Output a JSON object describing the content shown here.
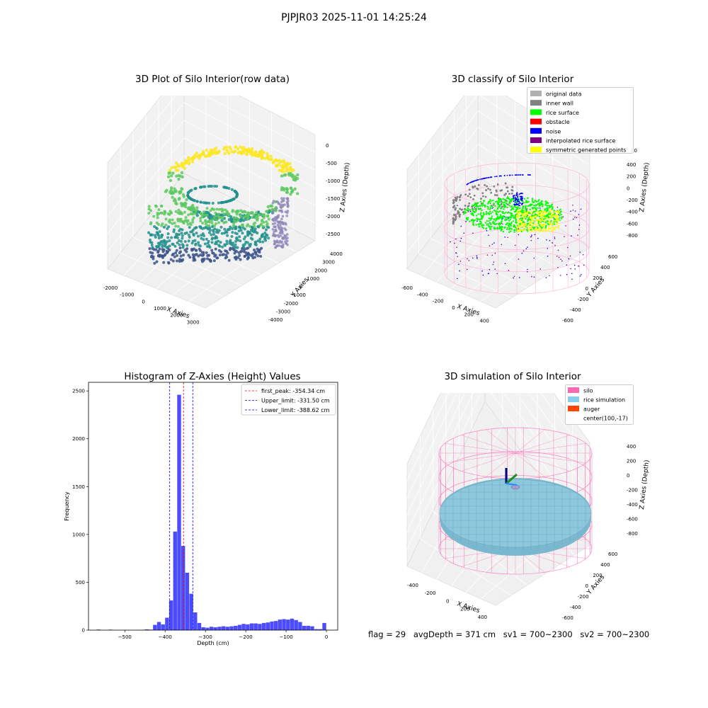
{
  "figure": {
    "title": "PJPJR03 2025-11-01 14:25:24"
  },
  "panel_raw": {
    "title": "3D Plot of Silo Interior(row data)",
    "xlabel": "X Axies",
    "ylabel": "Y Axies",
    "zlabel": "Z Axies (Depth)",
    "x_ticks": [
      "-2000",
      "-1000",
      "0",
      "1000",
      "2000",
      "3000",
      "4000"
    ],
    "y_ticks": [
      "-4000",
      "-3000",
      "-2000",
      "-1000",
      "0",
      "1000",
      "2000",
      "3000",
      "4000"
    ],
    "z_ticks": [
      "0",
      "-500",
      "-1000",
      "-1500",
      "-2000",
      "-2500"
    ],
    "colormap": [
      "#440154",
      "#3b528b",
      "#21918c",
      "#5ec962",
      "#fde725"
    ]
  },
  "panel_classify": {
    "title": "3D classify of Silo Interior",
    "xlabel": "X Axies",
    "ylabel": "Y Axies",
    "zlabel": "Z Axies (Depth)",
    "x_ticks": [
      "-600",
      "-400",
      "-200",
      "0",
      "200",
      "400",
      "600"
    ],
    "y_ticks": [
      "-600",
      "-400",
      "-200",
      "0",
      "200",
      "400",
      "600"
    ],
    "z_ticks": [
      "400",
      "200",
      "0",
      "-200",
      "-400",
      "-600",
      "-800"
    ],
    "z_tick_partial": "00",
    "legend": [
      {
        "label": "original data",
        "color": "#b0b0b0"
      },
      {
        "label": "inner wall",
        "color": "#808080"
      },
      {
        "label": "rice surface",
        "color": "#00ff00"
      },
      {
        "label": "obstacle",
        "color": "#ff0000"
      },
      {
        "label": "noise",
        "color": "#0000ff"
      },
      {
        "label": "interpolated rice surface",
        "color": "#800080"
      },
      {
        "label": "symmetric generated points",
        "color": "#ffff00"
      }
    ]
  },
  "panel_sim": {
    "title": "3D simulation of Silo Interior",
    "xlabel": "X Axies",
    "ylabel": "Y Axies",
    "zlabel": "Z Axies (Depth)",
    "x_ticks": [
      "-400",
      "-200",
      "0",
      "200",
      "400",
      "600"
    ],
    "y_ticks": [
      "-600",
      "-400",
      "-200",
      "0",
      "200",
      "400",
      "600"
    ],
    "z_ticks": [
      "400",
      "200",
      "0",
      "-200",
      "-400",
      "-600",
      "-800"
    ],
    "legend": [
      {
        "label": "silo",
        "color": "#ff69b4"
      },
      {
        "label": "rice simulation",
        "color": "#87ceeb"
      },
      {
        "label": "auger",
        "color": "#ff4500"
      },
      {
        "label": "center(100,-17)",
        "color": ""
      }
    ]
  },
  "status": {
    "flag": "flag = 29",
    "avg_depth": "avgDepth = 371 cm",
    "sv1": "sv1 = 700~2300",
    "sv2": "sv2 = 700~2300"
  },
  "chart_data": {
    "type": "bar",
    "title": "Histogram of Z-Axies (Height) Values",
    "xlabel": "Depth (cm)",
    "ylabel": "Frequency",
    "xlim": [
      -590,
      28
    ],
    "ylim": [
      0,
      2590
    ],
    "x_ticks": [
      -500,
      -400,
      -300,
      -200,
      -100,
      0
    ],
    "y_ticks": [
      0,
      500,
      1000,
      1500,
      2000,
      2500
    ],
    "bar_color": "#0000ff",
    "bin_width": 10,
    "bins": [
      [
        -565,
        6
      ],
      [
        -555,
        0
      ],
      [
        -545,
        0
      ],
      [
        -535,
        5
      ],
      [
        -525,
        0
      ],
      [
        -515,
        0
      ],
      [
        -505,
        0
      ],
      [
        -495,
        0
      ],
      [
        -485,
        0
      ],
      [
        -475,
        0
      ],
      [
        -465,
        0
      ],
      [
        -455,
        3
      ],
      [
        -445,
        8
      ],
      [
        -435,
        5
      ],
      [
        -425,
        55
      ],
      [
        -415,
        85
      ],
      [
        -405,
        60
      ],
      [
        -395,
        130
      ],
      [
        -385,
        310
      ],
      [
        -375,
        1030
      ],
      [
        -365,
        2460
      ],
      [
        -355,
        880
      ],
      [
        -345,
        600
      ],
      [
        -335,
        380
      ],
      [
        -325,
        185
      ],
      [
        -315,
        75
      ],
      [
        -305,
        30
      ],
      [
        -295,
        25
      ],
      [
        -285,
        35
      ],
      [
        -275,
        30
      ],
      [
        -265,
        35
      ],
      [
        -255,
        40
      ],
      [
        -245,
        35
      ],
      [
        -235,
        40
      ],
      [
        -225,
        45
      ],
      [
        -215,
        55
      ],
      [
        -205,
        65
      ],
      [
        -195,
        60
      ],
      [
        -185,
        70
      ],
      [
        -175,
        70
      ],
      [
        -165,
        65
      ],
      [
        -155,
        75
      ],
      [
        -145,
        80
      ],
      [
        -135,
        90
      ],
      [
        -125,
        95
      ],
      [
        -115,
        110
      ],
      [
        -105,
        115
      ],
      [
        -95,
        110
      ],
      [
        -85,
        120
      ],
      [
        -75,
        105
      ],
      [
        -65,
        85
      ],
      [
        -55,
        45
      ],
      [
        -45,
        45
      ],
      [
        -35,
        40
      ],
      [
        -25,
        10
      ],
      [
        -15,
        10
      ],
      [
        -5,
        75
      ]
    ],
    "lines": [
      {
        "label": "first_peak: -354.34 cm",
        "x": -354.34,
        "color": "#ff0000"
      },
      {
        "label": "Upper_limit: -331.50 cm",
        "x": -331.5,
        "color": "#0000ff"
      },
      {
        "label": "Lower_limit: -388.62 cm",
        "x": -388.62,
        "color": "#0000ff"
      }
    ]
  }
}
